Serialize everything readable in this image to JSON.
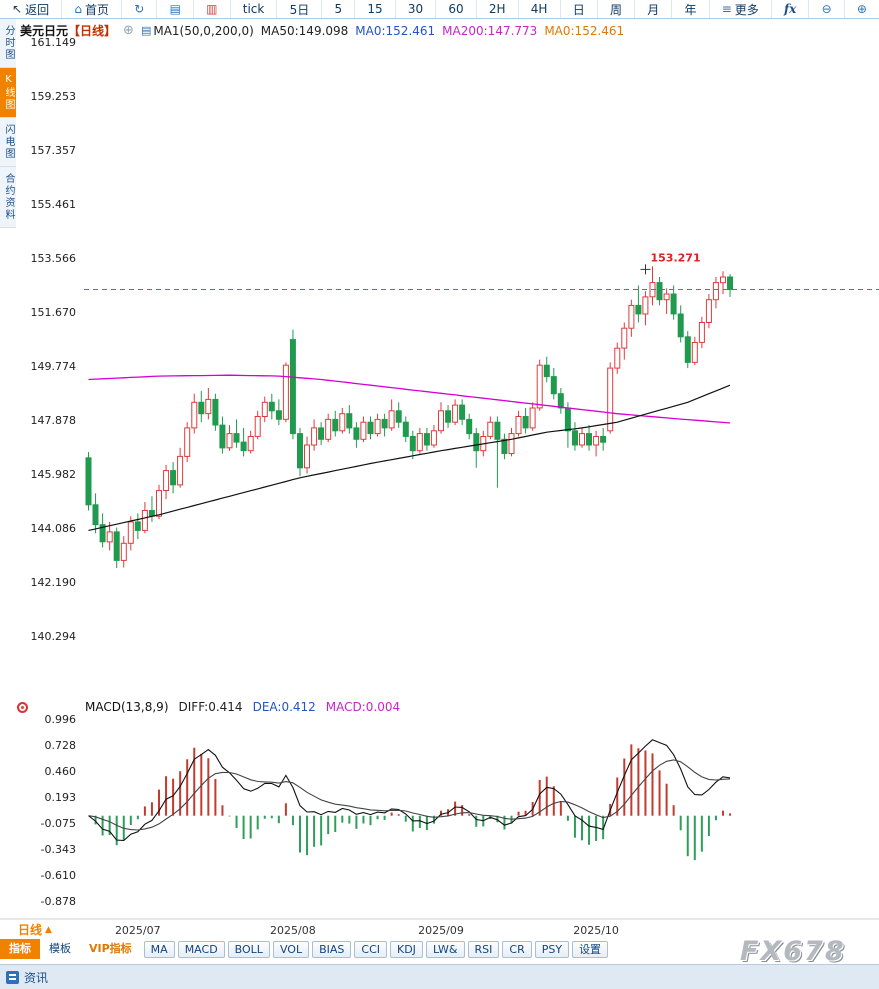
{
  "toolbar": {
    "items": [
      {
        "name": "back-button",
        "icon": "↖",
        "icon_name": "back-arrow-icon",
        "icon_cls": "dark",
        "label": "返回"
      },
      {
        "name": "home-button",
        "icon": "⌂",
        "icon_name": "home-icon",
        "label": "首页"
      },
      {
        "name": "refresh-button",
        "icon": "↻",
        "icon_name": "refresh-icon"
      },
      {
        "name": "line-chart-button",
        "icon": "▤",
        "icon_name": "line-chart-icon"
      },
      {
        "name": "candlestick-chart-button",
        "icon": "▥",
        "icon_name": "candlestick-icon",
        "icon_cls": "red"
      },
      {
        "name": "tick-button",
        "label": "tick"
      },
      {
        "name": "period-5d-button",
        "label": "5日"
      },
      {
        "name": "period-5-button",
        "label": "5"
      },
      {
        "name": "period-15-button",
        "label": "15"
      },
      {
        "name": "period-30-button",
        "label": "30"
      },
      {
        "name": "period-60-button",
        "label": "60"
      },
      {
        "name": "period-2h-button",
        "label": "2H"
      },
      {
        "name": "period-4h-button",
        "label": "4H"
      },
      {
        "name": "period-day-button",
        "label": "日"
      },
      {
        "name": "period-week-button",
        "label": "周"
      },
      {
        "name": "period-month-button",
        "label": "月"
      },
      {
        "name": "period-year-button",
        "label": "年"
      },
      {
        "name": "more-button",
        "icon": "≡",
        "icon_name": "more-menu-icon",
        "label": "更多"
      },
      {
        "name": "formula-button",
        "label": "fx",
        "cls": "fx"
      },
      {
        "name": "zoom-out-button",
        "icon": "⊖",
        "icon_name": "zoom-out-icon"
      },
      {
        "name": "zoom-in-button",
        "icon": "⊕",
        "icon_name": "zoom-in-icon"
      }
    ]
  },
  "sidebar": {
    "items": [
      {
        "name": "sidebar-tab-time-chart",
        "label": "分时图"
      },
      {
        "name": "sidebar-tab-kline-chart",
        "label": "K线图",
        "cls": "active"
      },
      {
        "name": "sidebar-tab-lightning-chart",
        "label": "闪电图"
      },
      {
        "name": "sidebar-tab-contract-info",
        "label": "合约资料"
      }
    ]
  },
  "chart_header": {
    "symbol": "美元日元",
    "period": "【日线】",
    "add_icon": "⊕",
    "doc_icon": "▤",
    "ma_group": "MA1(50,0,200,0)",
    "ma50": "MA50:149.098",
    "ma0_blue": "MA0:152.461",
    "ma200": "MA200:147.773",
    "ma0_orange": "MA0:152.461"
  },
  "macd_header": {
    "title": "MACD(13,8,9)",
    "diff": "DIFF:0.414",
    "dea": "DEA:0.412",
    "macd": "MACD:0.004"
  },
  "kline_tab": {
    "label": "日线",
    "arrow": "▲"
  },
  "bottom_toolbar": {
    "items": [
      {
        "name": "tab-indicators",
        "label": "指标",
        "cls": "bt-tab act"
      },
      {
        "name": "tab-templates",
        "label": "模板",
        "cls": "bt-tab"
      },
      {
        "name": "tab-vip-indicators",
        "label": "VIP指标",
        "cls": "bt-tab vip"
      },
      {
        "name": "indicator-ma-button",
        "label": "MA",
        "cls": "bt-btn"
      },
      {
        "name": "indicator-macd-button",
        "label": "MACD",
        "cls": "bt-btn"
      },
      {
        "name": "indicator-boll-button",
        "label": "BOLL",
        "cls": "bt-btn"
      },
      {
        "name": "indicator-vol-button",
        "label": "VOL",
        "cls": "bt-btn"
      },
      {
        "name": "indicator-bias-button",
        "label": "BIAS",
        "cls": "bt-btn"
      },
      {
        "name": "indicator-cci-button",
        "label": "CCI",
        "cls": "bt-btn"
      },
      {
        "name": "indicator-kdj-button",
        "label": "KDJ",
        "cls": "bt-btn"
      },
      {
        "name": "indicator-lw-button",
        "label": "LW&",
        "cls": "bt-btn"
      },
      {
        "name": "indicator-rsi-button",
        "label": "RSI",
        "cls": "bt-btn"
      },
      {
        "name": "indicator-cr-button",
        "label": "CR",
        "cls": "bt-btn"
      },
      {
        "name": "indicator-psy-button",
        "label": "PSY",
        "cls": "bt-btn"
      },
      {
        "name": "settings-button",
        "label": "设置",
        "cls": "bt-btn"
      }
    ]
  },
  "watermark": "FX678",
  "statusbar": {
    "news_label": "资讯"
  },
  "colors": {
    "up": "#e23a3a",
    "down": "#1f9a4e",
    "ma50": "#111111",
    "ma200": "#d400d4",
    "last_price_line": "#0f9898",
    "hist_pos": "#c43a2e",
    "hist_neg": "#2e9e5b",
    "diff_line": "#111111",
    "dea_line": "#444444",
    "high_label": "#e02020",
    "axis_text": "#222222"
  },
  "chart_data": {
    "type": "candlestick",
    "symbol": "美元日元 (USD/JPY)",
    "interval": "日线",
    "price_axis_ticks": [
      "161.149",
      "159.253",
      "157.357",
      "155.461",
      "153.566",
      "151.670",
      "149.774",
      "147.878",
      "145.982",
      "144.086",
      "142.190",
      "140.294"
    ],
    "macd_axis_ticks": [
      "0.996",
      "0.728",
      "0.460",
      "0.193",
      "-0.075",
      "-0.343",
      "-0.610",
      "-0.878"
    ],
    "month_ticks": [
      {
        "label": "2025/07",
        "index": 7
      },
      {
        "label": "2025/08",
        "index": 29
      },
      {
        "label": "2025/09",
        "index": 50
      },
      {
        "label": "2025/10",
        "index": 72
      }
    ],
    "last_price": 152.461,
    "high_label": {
      "index": 80,
      "price": 153.271,
      "text": "153.271"
    },
    "candles": [
      [
        146.55,
        146.75,
        144.7,
        144.9
      ],
      [
        144.9,
        145.3,
        143.9,
        144.2
      ],
      [
        144.2,
        144.6,
        143.4,
        143.6
      ],
      [
        143.6,
        144.3,
        143.3,
        143.95
      ],
      [
        143.95,
        144.1,
        142.68,
        142.95
      ],
      [
        142.95,
        143.8,
        142.7,
        143.55
      ],
      [
        143.55,
        144.5,
        143.3,
        144.3
      ],
      [
        144.3,
        144.6,
        143.7,
        144.0
      ],
      [
        144.0,
        145.0,
        143.9,
        144.7
      ],
      [
        144.7,
        145.2,
        144.3,
        144.5
      ],
      [
        144.5,
        145.6,
        144.4,
        145.4
      ],
      [
        145.4,
        146.3,
        145.1,
        146.1
      ],
      [
        146.1,
        146.4,
        145.3,
        145.6
      ],
      [
        145.6,
        146.9,
        145.5,
        146.6
      ],
      [
        146.6,
        147.8,
        146.4,
        147.6
      ],
      [
        147.6,
        148.8,
        147.4,
        148.5
      ],
      [
        148.5,
        148.9,
        147.8,
        148.1
      ],
      [
        148.1,
        149.0,
        147.9,
        148.6
      ],
      [
        148.6,
        148.8,
        147.5,
        147.7
      ],
      [
        147.7,
        148.0,
        146.7,
        146.9
      ],
      [
        146.9,
        147.7,
        146.8,
        147.4
      ],
      [
        147.4,
        147.9,
        146.9,
        147.1
      ],
      [
        147.1,
        147.6,
        146.6,
        146.8
      ],
      [
        146.8,
        147.5,
        146.7,
        147.3
      ],
      [
        147.3,
        148.2,
        147.2,
        148.0
      ],
      [
        148.0,
        148.7,
        147.8,
        148.5
      ],
      [
        148.5,
        148.8,
        147.9,
        148.2
      ],
      [
        148.2,
        148.6,
        147.7,
        147.9
      ],
      [
        147.9,
        149.9,
        147.8,
        149.8
      ],
      [
        150.7,
        151.05,
        147.2,
        147.4
      ],
      [
        147.4,
        147.6,
        145.9,
        146.2
      ],
      [
        146.2,
        147.3,
        146.0,
        147.0
      ],
      [
        147.0,
        147.9,
        146.8,
        147.6
      ],
      [
        147.6,
        147.8,
        147.0,
        147.2
      ],
      [
        147.2,
        148.1,
        147.1,
        147.9
      ],
      [
        147.9,
        148.2,
        147.3,
        147.5
      ],
      [
        147.5,
        148.3,
        147.4,
        148.1
      ],
      [
        148.1,
        148.4,
        147.4,
        147.6
      ],
      [
        147.6,
        147.8,
        146.9,
        147.2
      ],
      [
        147.2,
        148.0,
        147.1,
        147.8
      ],
      [
        147.8,
        148.0,
        147.2,
        147.4
      ],
      [
        147.4,
        148.1,
        147.3,
        147.9
      ],
      [
        147.9,
        148.1,
        147.3,
        147.6
      ],
      [
        147.6,
        148.6,
        147.5,
        148.2
      ],
      [
        148.2,
        148.5,
        147.6,
        147.8
      ],
      [
        147.8,
        148.0,
        147.1,
        147.3
      ],
      [
        147.3,
        147.5,
        146.5,
        146.8
      ],
      [
        146.8,
        147.6,
        146.7,
        147.4
      ],
      [
        147.4,
        147.6,
        146.8,
        147.0
      ],
      [
        147.0,
        147.7,
        146.9,
        147.5
      ],
      [
        147.5,
        148.5,
        147.4,
        148.2
      ],
      [
        148.2,
        148.4,
        147.6,
        147.8
      ],
      [
        147.8,
        148.6,
        147.7,
        148.4
      ],
      [
        148.4,
        148.6,
        147.7,
        147.9
      ],
      [
        147.9,
        148.1,
        147.2,
        147.4
      ],
      [
        147.4,
        147.6,
        146.2,
        146.8
      ],
      [
        146.8,
        147.5,
        146.6,
        147.3
      ],
      [
        147.3,
        148.0,
        147.2,
        147.8
      ],
      [
        147.8,
        148.0,
        145.5,
        147.2
      ],
      [
        147.2,
        147.4,
        146.5,
        146.7
      ],
      [
        146.7,
        147.6,
        146.6,
        147.4
      ],
      [
        147.4,
        148.2,
        147.3,
        148.0
      ],
      [
        148.0,
        148.3,
        147.4,
        147.6
      ],
      [
        147.6,
        148.5,
        147.5,
        148.3
      ],
      [
        148.3,
        150.0,
        148.2,
        149.8
      ],
      [
        149.8,
        150.1,
        149.2,
        149.4
      ],
      [
        149.4,
        149.7,
        148.6,
        148.8
      ],
      [
        148.8,
        149.0,
        148.1,
        148.3
      ],
      [
        148.3,
        148.5,
        146.9,
        147.5
      ],
      [
        147.5,
        147.8,
        146.8,
        147.0
      ],
      [
        147.0,
        147.6,
        146.9,
        147.4
      ],
      [
        147.4,
        147.7,
        146.8,
        147.0
      ],
      [
        147.0,
        147.5,
        146.6,
        147.3
      ],
      [
        147.3,
        147.6,
        146.8,
        147.1
      ],
      [
        147.5,
        149.9,
        147.4,
        149.7
      ],
      [
        149.7,
        150.6,
        149.5,
        150.4
      ],
      [
        150.4,
        151.3,
        150.0,
        151.1
      ],
      [
        151.1,
        152.1,
        150.8,
        151.9
      ],
      [
        151.9,
        152.6,
        151.3,
        151.6
      ],
      [
        151.6,
        152.4,
        151.2,
        152.2
      ],
      [
        152.2,
        153.271,
        151.9,
        152.7
      ],
      [
        152.7,
        152.9,
        151.9,
        152.1
      ],
      [
        152.1,
        152.5,
        151.6,
        152.3
      ],
      [
        152.3,
        152.6,
        151.4,
        151.6
      ],
      [
        151.6,
        151.9,
        150.6,
        150.8
      ],
      [
        150.8,
        151.0,
        149.7,
        149.9
      ],
      [
        149.9,
        150.8,
        149.8,
        150.6
      ],
      [
        150.6,
        151.5,
        150.4,
        151.3
      ],
      [
        151.3,
        152.3,
        151.1,
        152.1
      ],
      [
        152.1,
        152.9,
        151.8,
        152.7
      ],
      [
        152.7,
        153.1,
        152.3,
        152.9
      ],
      [
        152.9,
        153.0,
        152.2,
        152.461
      ]
    ],
    "ma50_points": [
      [
        0,
        144.0
      ],
      [
        10,
        144.55
      ],
      [
        20,
        145.2
      ],
      [
        30,
        145.85
      ],
      [
        40,
        146.35
      ],
      [
        50,
        146.8
      ],
      [
        55,
        147.0
      ],
      [
        60,
        147.2
      ],
      [
        65,
        147.45
      ],
      [
        70,
        147.6
      ],
      [
        75,
        147.8
      ],
      [
        80,
        148.15
      ],
      [
        85,
        148.5
      ],
      [
        88,
        148.8
      ],
      [
        91,
        149.098
      ]
    ],
    "ma200_points": [
      [
        0,
        149.3
      ],
      [
        10,
        149.42
      ],
      [
        20,
        149.45
      ],
      [
        27,
        149.42
      ],
      [
        33,
        149.3
      ],
      [
        40,
        149.1
      ],
      [
        47,
        148.9
      ],
      [
        54,
        148.7
      ],
      [
        61,
        148.5
      ],
      [
        68,
        148.3
      ],
      [
        75,
        148.1
      ],
      [
        82,
        147.95
      ],
      [
        91,
        147.773
      ]
    ],
    "macd": {
      "label": "MACD(13,8,9)",
      "fast": 8,
      "slow": 13,
      "signal": 9,
      "diff_last": 0.414,
      "dea_last": 0.412,
      "macd_last": 0.004
    }
  }
}
